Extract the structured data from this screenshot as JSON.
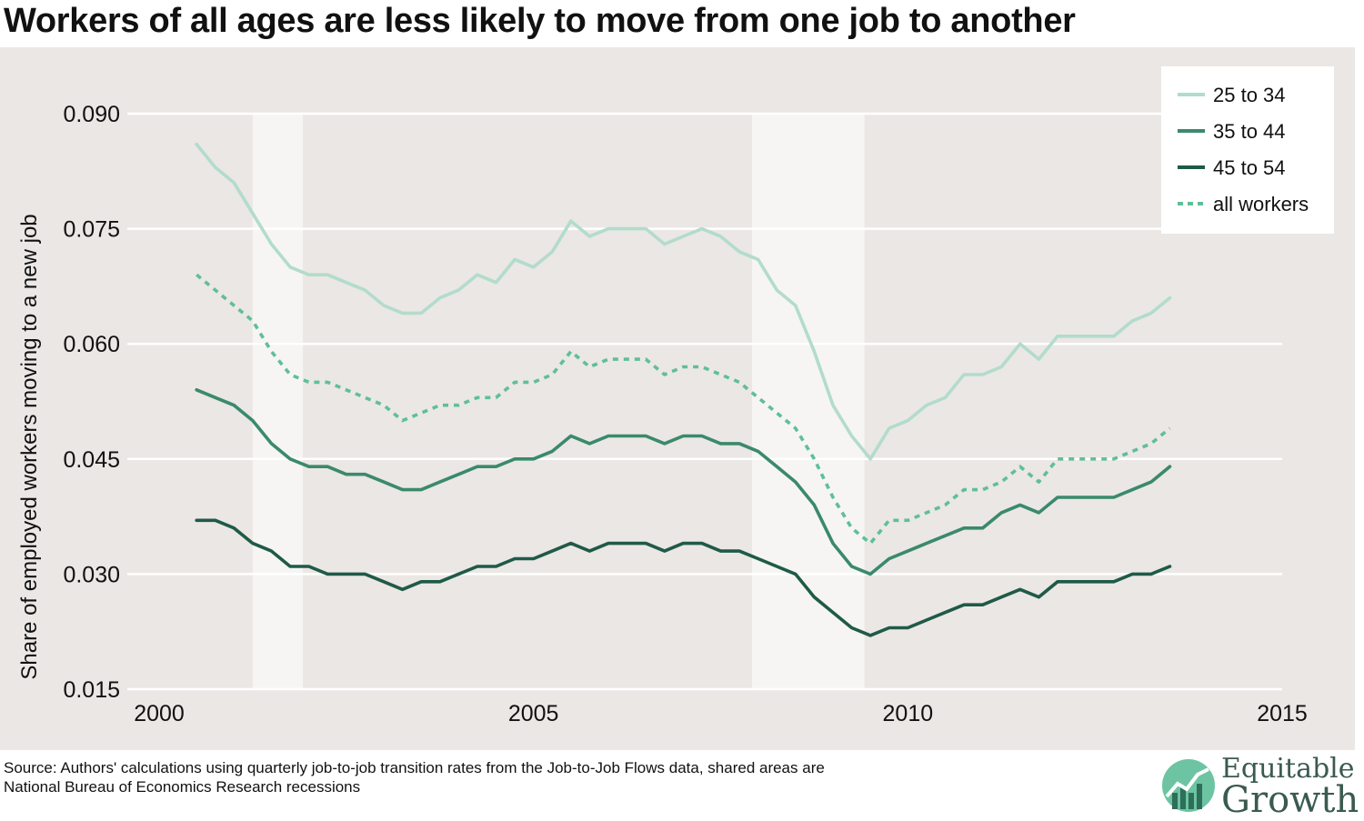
{
  "title": "Workers of all ages are less likely to move from one job to another",
  "source_note_1": "Source: Authors' calculations using quarterly job-to-job transition rates from the Job-to-Job Flows data, shared areas are",
  "source_note_2": "National Bureau of Economics Research recessions",
  "logo": {
    "line1": "Equitable",
    "line2": "Growth",
    "icon": "rising-trend-circle-icon"
  },
  "chart_data": {
    "type": "line",
    "title": "Workers of all ages are less likely to move from one job to another",
    "xlabel": "",
    "ylabel": "Share of employed workers moving to a new job",
    "xlim": [
      2000,
      2015
    ],
    "ylim": [
      0.015,
      0.09
    ],
    "x_ticks": [
      "2000",
      "2005",
      "2010",
      "2015"
    ],
    "y_ticks": [
      "0.015",
      "0.030",
      "0.045",
      "0.060",
      "0.075",
      "0.090"
    ],
    "grid": "horizontal",
    "legend_position": "top-right",
    "recessions": [
      [
        2001.25,
        2001.92
      ],
      [
        2007.92,
        2009.42
      ]
    ],
    "x": [
      2000.5,
      2000.75,
      2001.0,
      2001.25,
      2001.5,
      2001.75,
      2002.0,
      2002.25,
      2002.5,
      2002.75,
      2003.0,
      2003.25,
      2003.5,
      2003.75,
      2004.0,
      2004.25,
      2004.5,
      2004.75,
      2005.0,
      2005.25,
      2005.5,
      2005.75,
      2006.0,
      2006.25,
      2006.5,
      2006.75,
      2007.0,
      2007.25,
      2007.5,
      2007.75,
      2008.0,
      2008.25,
      2008.5,
      2008.75,
      2009.0,
      2009.25,
      2009.5,
      2009.75,
      2010.0,
      2010.25,
      2010.5,
      2010.75,
      2011.0,
      2011.25,
      2011.5,
      2011.75,
      2012.0,
      2012.25,
      2012.5,
      2012.75,
      2013.0,
      2013.25,
      2013.5
    ],
    "series": [
      {
        "name": "25 to 34",
        "color": "#b2dccb",
        "style": "solid",
        "values": [
          0.086,
          0.083,
          0.081,
          0.077,
          0.073,
          0.07,
          0.069,
          0.069,
          0.068,
          0.067,
          0.065,
          0.064,
          0.064,
          0.066,
          0.067,
          0.069,
          0.068,
          0.071,
          0.07,
          0.072,
          0.076,
          0.074,
          0.075,
          0.075,
          0.075,
          0.073,
          0.074,
          0.075,
          0.074,
          0.072,
          0.071,
          0.067,
          0.065,
          0.059,
          0.052,
          0.048,
          0.045,
          0.049,
          0.05,
          0.052,
          0.053,
          0.056,
          0.056,
          0.057,
          0.06,
          0.058,
          0.061,
          0.061,
          0.061,
          0.061,
          0.063,
          0.064,
          0.066
        ]
      },
      {
        "name": "35 to 44",
        "color": "#3a8a6c",
        "style": "solid",
        "values": [
          0.054,
          0.053,
          0.052,
          0.05,
          0.047,
          0.045,
          0.044,
          0.044,
          0.043,
          0.043,
          0.042,
          0.041,
          0.041,
          0.042,
          0.043,
          0.044,
          0.044,
          0.045,
          0.045,
          0.046,
          0.048,
          0.047,
          0.048,
          0.048,
          0.048,
          0.047,
          0.048,
          0.048,
          0.047,
          0.047,
          0.046,
          0.044,
          0.042,
          0.039,
          0.034,
          0.031,
          0.03,
          0.032,
          0.033,
          0.034,
          0.035,
          0.036,
          0.036,
          0.038,
          0.039,
          0.038,
          0.04,
          0.04,
          0.04,
          0.04,
          0.041,
          0.042,
          0.044
        ]
      },
      {
        "name": "45 to 54",
        "color": "#1f5a48",
        "style": "solid",
        "values": [
          0.037,
          0.037,
          0.036,
          0.034,
          0.033,
          0.031,
          0.031,
          0.03,
          0.03,
          0.03,
          0.029,
          0.028,
          0.029,
          0.029,
          0.03,
          0.031,
          0.031,
          0.032,
          0.032,
          0.033,
          0.034,
          0.033,
          0.034,
          0.034,
          0.034,
          0.033,
          0.034,
          0.034,
          0.033,
          0.033,
          0.032,
          0.031,
          0.03,
          0.027,
          0.025,
          0.023,
          0.022,
          0.023,
          0.023,
          0.024,
          0.025,
          0.026,
          0.026,
          0.027,
          0.028,
          0.027,
          0.029,
          0.029,
          0.029,
          0.029,
          0.03,
          0.03,
          0.031
        ]
      },
      {
        "name": "all workers",
        "color": "#5fbf98",
        "style": "dotted",
        "values": [
          0.069,
          0.067,
          0.065,
          0.063,
          0.059,
          0.056,
          0.055,
          0.055,
          0.054,
          0.053,
          0.052,
          0.05,
          0.051,
          0.052,
          0.052,
          0.053,
          0.053,
          0.055,
          0.055,
          0.056,
          0.059,
          0.057,
          0.058,
          0.058,
          0.058,
          0.056,
          0.057,
          0.057,
          0.056,
          0.055,
          0.053,
          0.051,
          0.049,
          0.045,
          0.04,
          0.036,
          0.034,
          0.037,
          0.037,
          0.038,
          0.039,
          0.041,
          0.041,
          0.042,
          0.044,
          0.042,
          0.045,
          0.045,
          0.045,
          0.045,
          0.046,
          0.047,
          0.049
        ]
      }
    ]
  }
}
